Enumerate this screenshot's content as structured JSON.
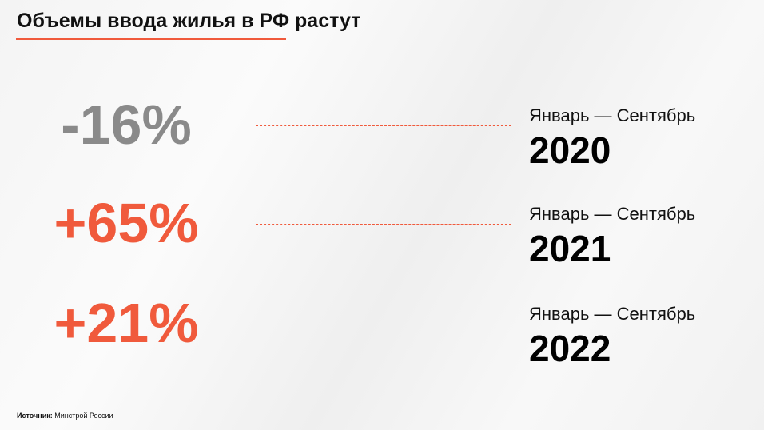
{
  "title": "Объемы ввода жилья в РФ растут",
  "rows": [
    {
      "value": "-16%",
      "color": "#8a8a8a",
      "period": "Январь — Сентябрь",
      "year": "2020"
    },
    {
      "value": "+65%",
      "color": "#f05a3c",
      "period": "Январь — Сентябрь",
      "year": "2021"
    },
    {
      "value": "+21%",
      "color": "#f05a3c",
      "period": "Январь — Сентябрь",
      "year": "2022"
    }
  ],
  "source": {
    "label": "Источник:",
    "text": "Минстрой России"
  }
}
